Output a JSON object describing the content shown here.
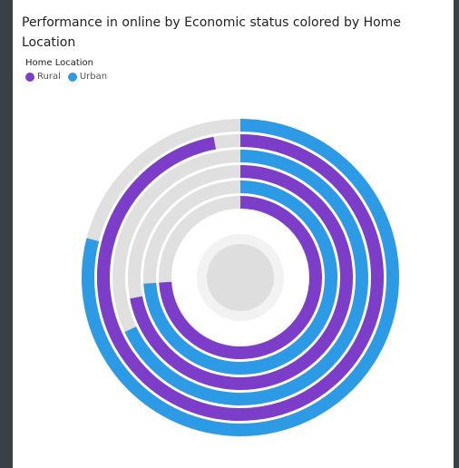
{
  "chart_data": {
    "type": "radial-bar",
    "title": "Performance in online by Economic status colored by Home Location",
    "legend_title": "Home Location",
    "categories": [
      null,
      null,
      null
    ],
    "rlim": [
      0,
      100
    ],
    "series": [
      {
        "name": "Urban",
        "color": "#2d9ae6",
        "values": [
          79,
          68,
          74
        ]
      },
      {
        "name": "Rural",
        "color": "#7c3dc9",
        "values": [
          97,
          72,
          74
        ]
      }
    ]
  }
}
